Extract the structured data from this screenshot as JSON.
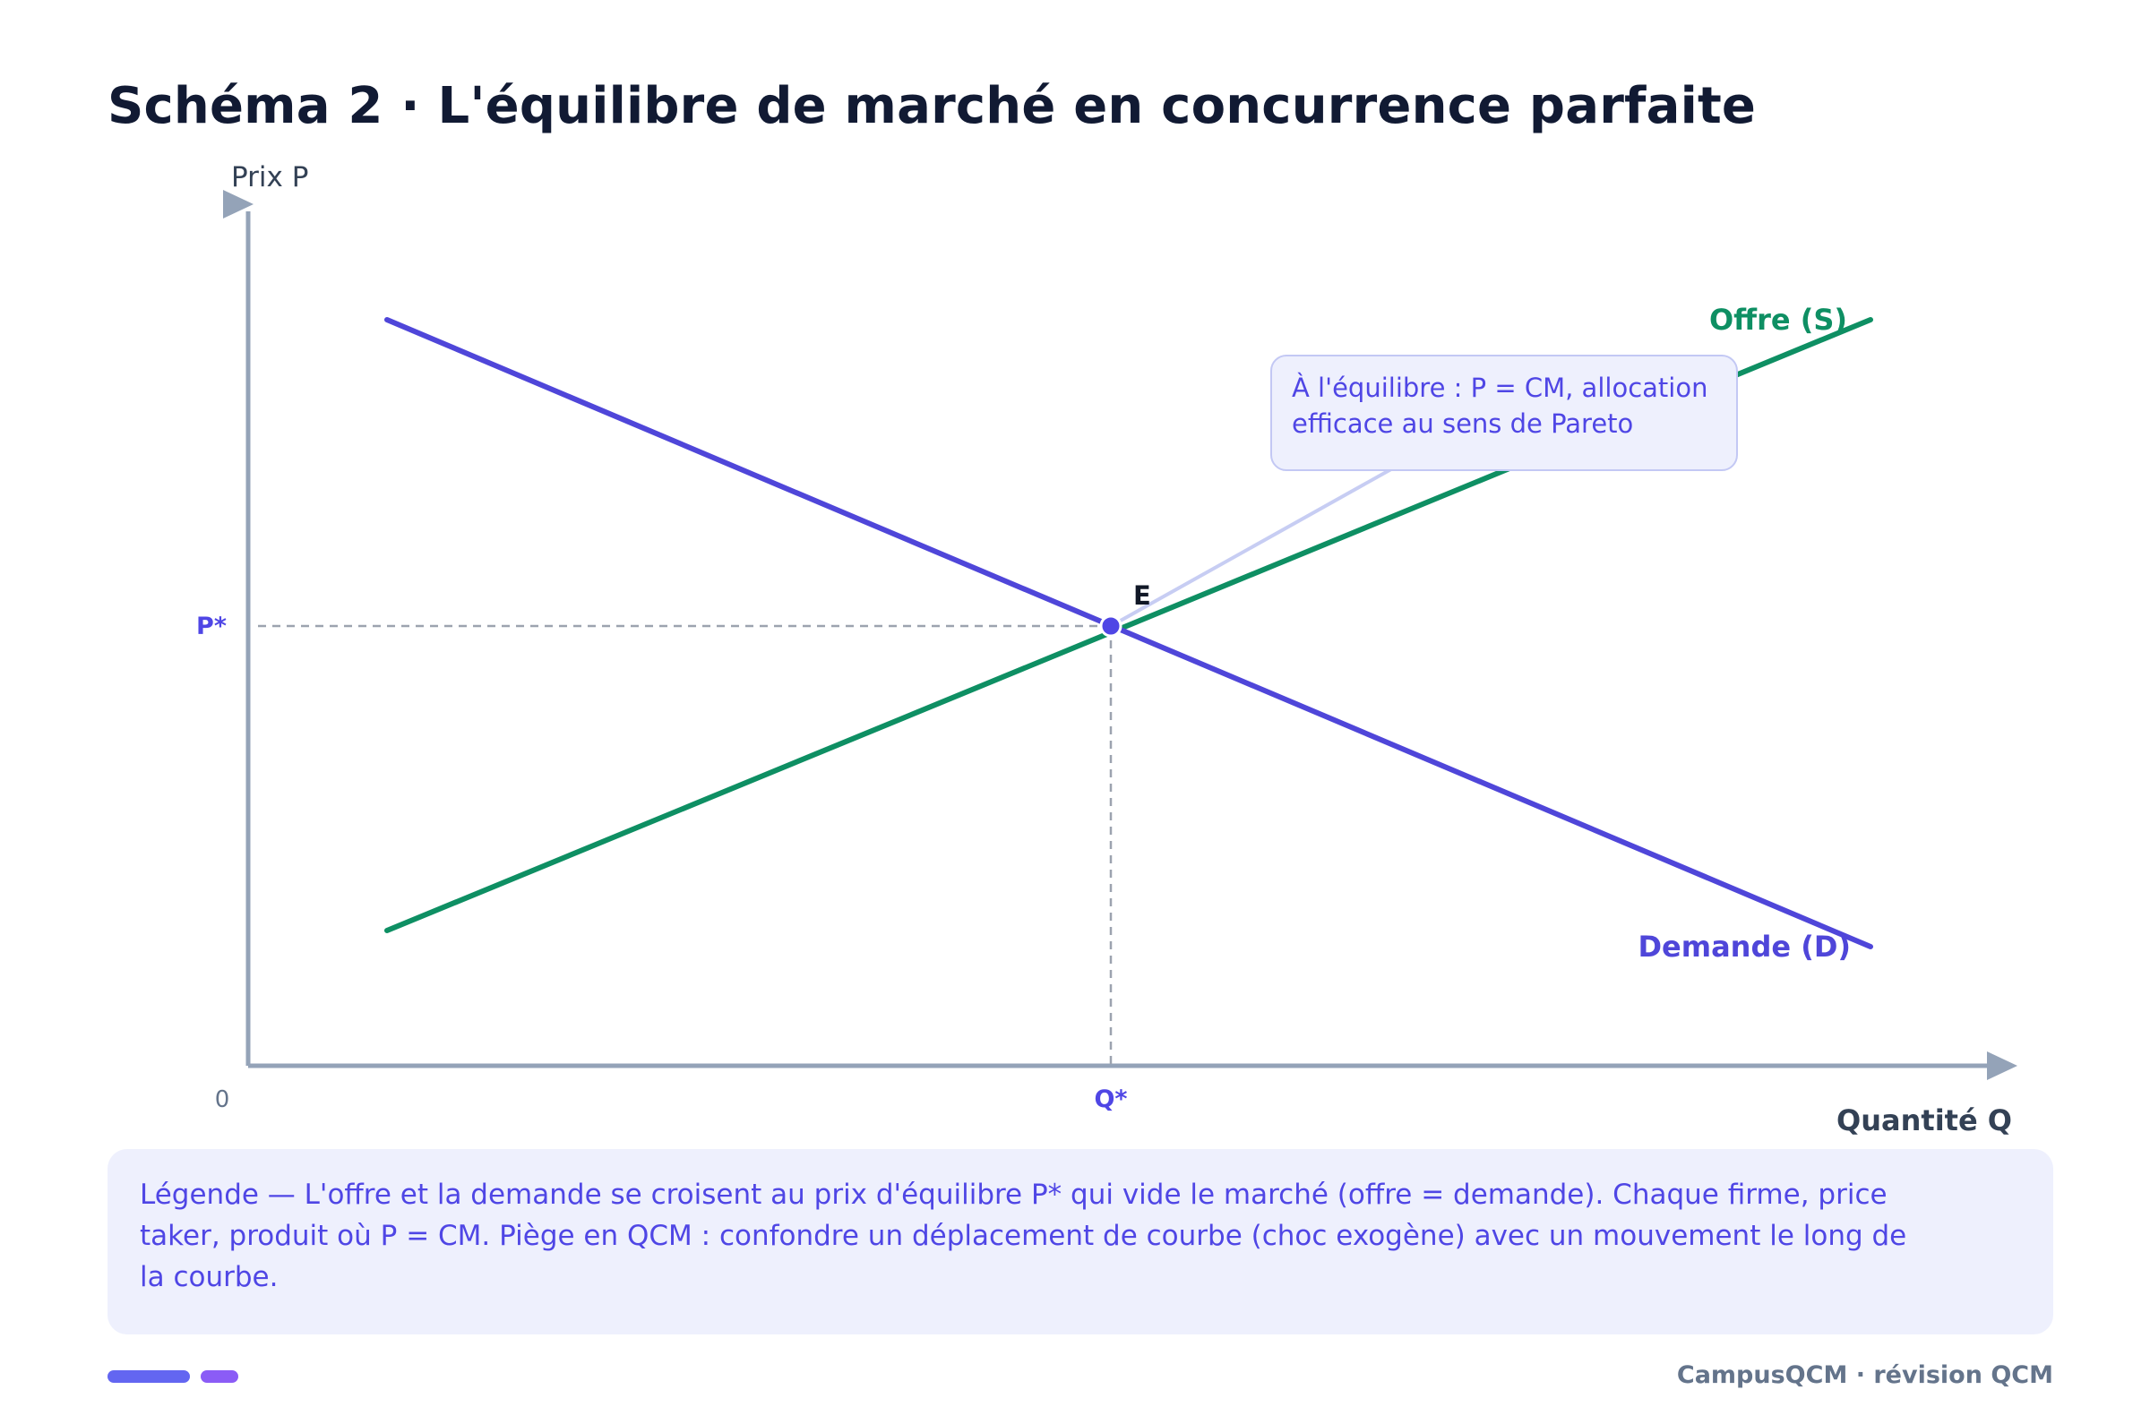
{
  "title": "Schéma 2 · L'équilibre de marché en concurrence parfaite",
  "axes": {
    "y_label": "Prix P",
    "x_label": "Quantité Q",
    "origin_label": "0",
    "p_star_label": "P*",
    "q_star_label": "Q*"
  },
  "curves": {
    "supply": {
      "label": "Offre (S)",
      "color": "#0e8f63"
    },
    "demand": {
      "label": "Demande (D)",
      "color": "#4f46d9"
    }
  },
  "equilibrium": {
    "label": "E",
    "annotation": "À l'équilibre : P = CM, allocation efficace au sens de Pareto"
  },
  "legend": {
    "text": "Légende — L'offre et la demande se croisent au prix d'équilibre P* qui vide le marché (offre = demande). Chaque firme, price taker, produit où P = CM. Piège en QCM : confondre un déplacement de courbe (choc exogène) avec un mouvement le long de la courbe."
  },
  "footer": "CampusQCM · révision QCM",
  "colors": {
    "axis": "#94a3b8",
    "accent": "#4f46e5",
    "title": "#111a33",
    "muted": "#64748b"
  }
}
